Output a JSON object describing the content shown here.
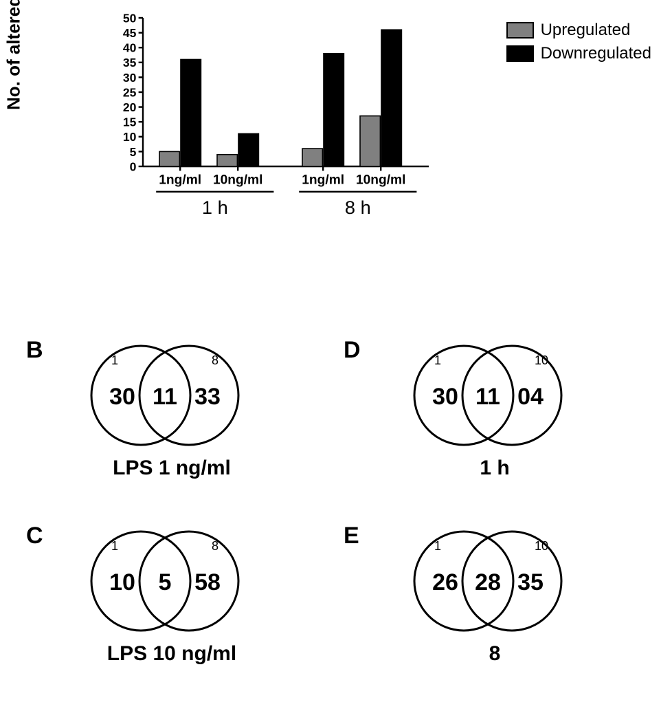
{
  "chart": {
    "type": "bar",
    "ylabel": "No. of altered miRNAs",
    "ylim": [
      0,
      50
    ],
    "ytick_step": 5,
    "yticks": [
      0,
      5,
      10,
      15,
      20,
      25,
      30,
      35,
      40,
      45,
      50
    ],
    "groups": [
      "1 h",
      "8 h"
    ],
    "categories_per_group": [
      "1ng/ml",
      "10ng/ml"
    ],
    "series": [
      {
        "label": "Upregulated",
        "color": "#808080"
      },
      {
        "label": "Downregulated",
        "color": "#000000"
      }
    ],
    "data": {
      "1 h": {
        "1ng/ml": {
          "Upregulated": 5,
          "Downregulated": 36
        },
        "10ng/ml": {
          "Upregulated": 4,
          "Downregulated": 11
        }
      },
      "8 h": {
        "1ng/ml": {
          "Upregulated": 6,
          "Downregulated": 38
        },
        "10ng/ml": {
          "Upregulated": 17,
          "Downregulated": 46
        }
      }
    },
    "bar_fill_outline": "#000000",
    "background_color": "#ffffff",
    "axis_color": "#000000",
    "label_fontsize": 26,
    "tick_fontsize": 22,
    "category_fontsize": 24,
    "group_fontsize": 34
  },
  "legend": {
    "items": [
      {
        "label": "Upregulated",
        "color": "#808080"
      },
      {
        "label": "Downregulated",
        "color": "#000000"
      }
    ]
  },
  "venns": {
    "B": {
      "title": "LPS 1 ng/ml",
      "left_label": "1",
      "right_label": "8",
      "left_only": 30,
      "intersection": 11,
      "right_only": 33
    },
    "C": {
      "title": "LPS 10 ng/ml",
      "left_label": "1",
      "right_label": "8",
      "left_only": 10,
      "intersection": 5,
      "right_only": 58
    },
    "D": {
      "title": "1 h",
      "left_label": "1",
      "right_label": "10",
      "left_only": 30,
      "intersection": 11,
      "right_only": "04"
    },
    "E": {
      "title": "8",
      "left_label": "1",
      "right_label": "10",
      "left_only": 26,
      "intersection": 28,
      "right_only": 35
    }
  },
  "venn_style": {
    "circle_stroke": "#000000",
    "circle_stroke_width": 3,
    "num_fontsize": 34,
    "small_fontsize": 18,
    "title_fontsize": 30
  }
}
